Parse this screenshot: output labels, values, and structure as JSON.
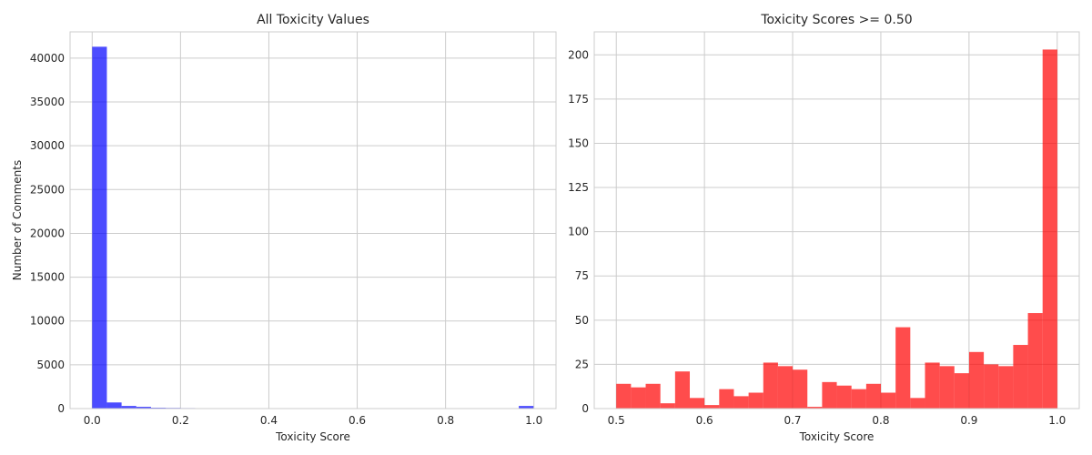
{
  "chart_data": [
    {
      "type": "bar",
      "title": "All Toxicity Values",
      "xlabel": "Toxicity Score",
      "ylabel": "Number of Comments",
      "xlim": [
        -0.05,
        1.05
      ],
      "ylim": [
        0,
        43000
      ],
      "xticks": [
        0.0,
        0.2,
        0.4,
        0.6,
        0.8,
        1.0
      ],
      "xtick_labels": [
        "0.0",
        "0.2",
        "0.4",
        "0.6",
        "0.8",
        "1.0"
      ],
      "yticks": [
        0,
        5000,
        10000,
        15000,
        20000,
        25000,
        30000,
        35000,
        40000
      ],
      "ytick_labels": [
        "0",
        "5000",
        "10000",
        "15000",
        "20000",
        "25000",
        "30000",
        "35000",
        "40000"
      ],
      "bin_start": 0.0,
      "bin_width": 0.0333,
      "values": [
        41300,
        700,
        300,
        200,
        100,
        80,
        60,
        50,
        40,
        40,
        35,
        30,
        30,
        25,
        25,
        25,
        20,
        20,
        20,
        20,
        20,
        20,
        20,
        20,
        20,
        20,
        20,
        20,
        40,
        300
      ],
      "color": "#0000ff",
      "grid": true
    },
    {
      "type": "bar",
      "title": "Toxicity Scores >= 0.50",
      "xlabel": "Toxicity Score",
      "ylabel": "",
      "xlim": [
        0.475,
        1.025
      ],
      "ylim": [
        0,
        213
      ],
      "xticks": [
        0.5,
        0.6,
        0.7,
        0.8,
        0.9,
        1.0
      ],
      "xtick_labels": [
        "0.5",
        "0.6",
        "0.7",
        "0.8",
        "0.9",
        "1.0"
      ],
      "yticks": [
        0,
        25,
        50,
        75,
        100,
        125,
        150,
        175,
        200
      ],
      "ytick_labels": [
        "0",
        "25",
        "50",
        "75",
        "100",
        "125",
        "150",
        "175",
        "200"
      ],
      "bin_start": 0.5,
      "bin_width": 0.01667,
      "values": [
        14,
        12,
        14,
        3,
        21,
        6,
        2,
        11,
        7,
        9,
        26,
        24,
        22,
        1,
        15,
        13,
        11,
        14,
        9,
        46,
        6,
        26,
        24,
        20,
        32,
        25,
        24,
        36,
        54,
        203
      ],
      "color": "#ff0000",
      "grid": true
    }
  ]
}
